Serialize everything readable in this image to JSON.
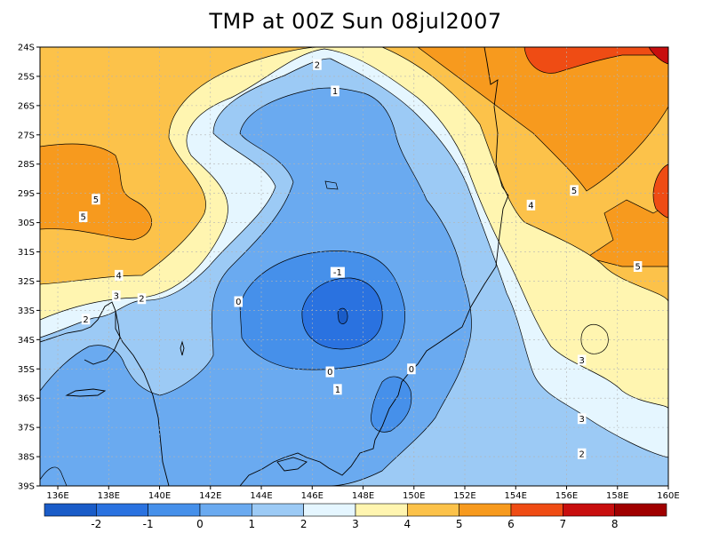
{
  "title": "TMP at 00Z Sun 08jul2007",
  "chart_data": {
    "type": "heatmap",
    "title": "TMP at 00Z Sun 08jul2007",
    "x_ticks": [
      "136E",
      "138E",
      "140E",
      "142E",
      "144E",
      "146E",
      "148E",
      "150E",
      "152E",
      "154E",
      "156E",
      "158E",
      "160E"
    ],
    "x_values": [
      136,
      138,
      140,
      142,
      144,
      146,
      148,
      150,
      152,
      154,
      156,
      158,
      160
    ],
    "xlim": [
      135.3,
      160
    ],
    "y_ticks": [
      "24S",
      "25S",
      "26S",
      "27S",
      "28S",
      "29S",
      "30S",
      "31S",
      "32S",
      "33S",
      "34S",
      "35S",
      "36S",
      "37S",
      "38S",
      "39S"
    ],
    "y_values": [
      -24,
      -25,
      -26,
      -27,
      -28,
      -29,
      -30,
      -31,
      -32,
      -33,
      -34,
      -35,
      -36,
      -37,
      -38,
      -39
    ],
    "ylim": [
      -39,
      -24
    ],
    "grid": true,
    "colorbar": {
      "labels": [
        "-2",
        "-1",
        "0",
        "1",
        "2",
        "3",
        "4",
        "5",
        "6",
        "7",
        "8"
      ],
      "bins": [
        {
          "color": "#1a5cc8"
        },
        {
          "color": "#2a72e0"
        },
        {
          "color": "#4690ea"
        },
        {
          "color": "#6aaaf0"
        },
        {
          "color": "#9ccaf5"
        },
        {
          "color": "#e5f6ff"
        },
        {
          "color": "#fff5b0"
        },
        {
          "color": "#fcc24a"
        },
        {
          "color": "#f79a1e"
        },
        {
          "color": "#ef4c14"
        },
        {
          "color": "#c80e0e"
        },
        {
          "color": "#a00000"
        }
      ]
    },
    "contour_labels": [
      {
        "text": "2",
        "lon": 146.2,
        "lat": -24.6
      },
      {
        "text": "1",
        "lon": 146.9,
        "lat": -25.5
      },
      {
        "text": "5",
        "lon": 137.5,
        "lat": -29.2
      },
      {
        "text": "5",
        "lon": 137.0,
        "lat": -29.8
      },
      {
        "text": "4",
        "lon": 138.4,
        "lat": -31.8
      },
      {
        "text": "3",
        "lon": 138.3,
        "lat": -32.5
      },
      {
        "text": "2",
        "lon": 139.3,
        "lat": -32.6
      },
      {
        "text": "2",
        "lon": 137.1,
        "lat": -33.3
      },
      {
        "text": "0",
        "lon": 143.1,
        "lat": -32.7
      },
      {
        "text": "-1",
        "lon": 147.0,
        "lat": -31.7
      },
      {
        "text": "0",
        "lon": 146.7,
        "lat": -35.1
      },
      {
        "text": "0",
        "lon": 149.9,
        "lat": -35.0
      },
      {
        "text": "1",
        "lon": 147.0,
        "lat": -35.7
      },
      {
        "text": "4",
        "lon": 154.6,
        "lat": -29.4
      },
      {
        "text": "5",
        "lon": 156.3,
        "lat": -28.9
      },
      {
        "text": "5",
        "lon": 158.8,
        "lat": -31.5
      },
      {
        "text": "3",
        "lon": 156.6,
        "lat": -34.7
      },
      {
        "text": "3",
        "lon": 156.6,
        "lat": -36.7
      },
      {
        "text": "2",
        "lon": 156.6,
        "lat": -37.9
      }
    ]
  }
}
